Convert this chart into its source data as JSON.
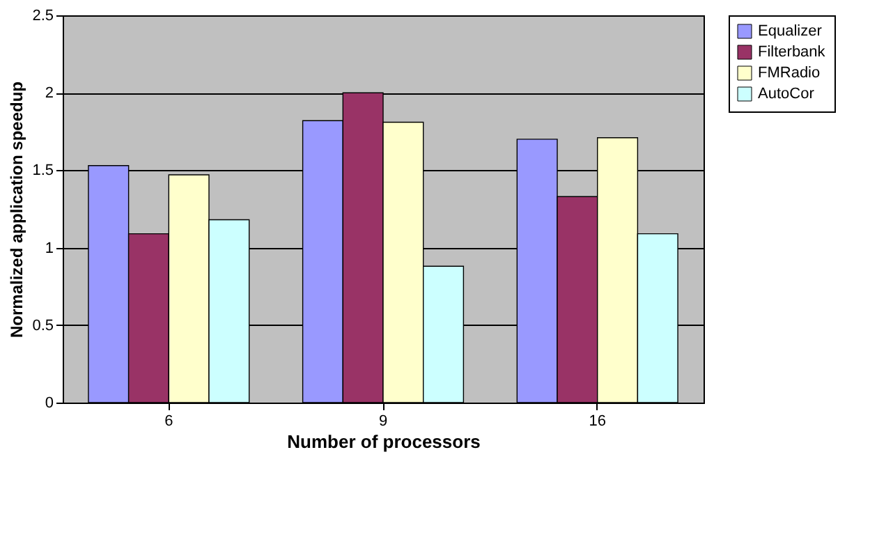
{
  "chart_data": {
    "type": "bar",
    "xlabel": "Number of processors",
    "ylabel": "Normalized application speedup",
    "categories": [
      "6",
      "9",
      "16"
    ],
    "series": [
      {
        "name": "Equalizer",
        "color": "#9999ff",
        "values": [
          1.53,
          1.82,
          1.7
        ]
      },
      {
        "name": "Filterbank",
        "color": "#993366",
        "values": [
          1.09,
          2.0,
          1.33
        ]
      },
      {
        "name": "FMRadio",
        "color": "#ffffcc",
        "values": [
          1.47,
          1.81,
          1.71
        ]
      },
      {
        "name": "AutoCor",
        "color": "#ccffff",
        "values": [
          1.18,
          0.88,
          1.09
        ]
      }
    ],
    "ylim": [
      0,
      2.5
    ],
    "yticks": [
      0,
      0.5,
      1,
      1.5,
      2,
      2.5
    ],
    "grid": "y",
    "legend": "right"
  }
}
